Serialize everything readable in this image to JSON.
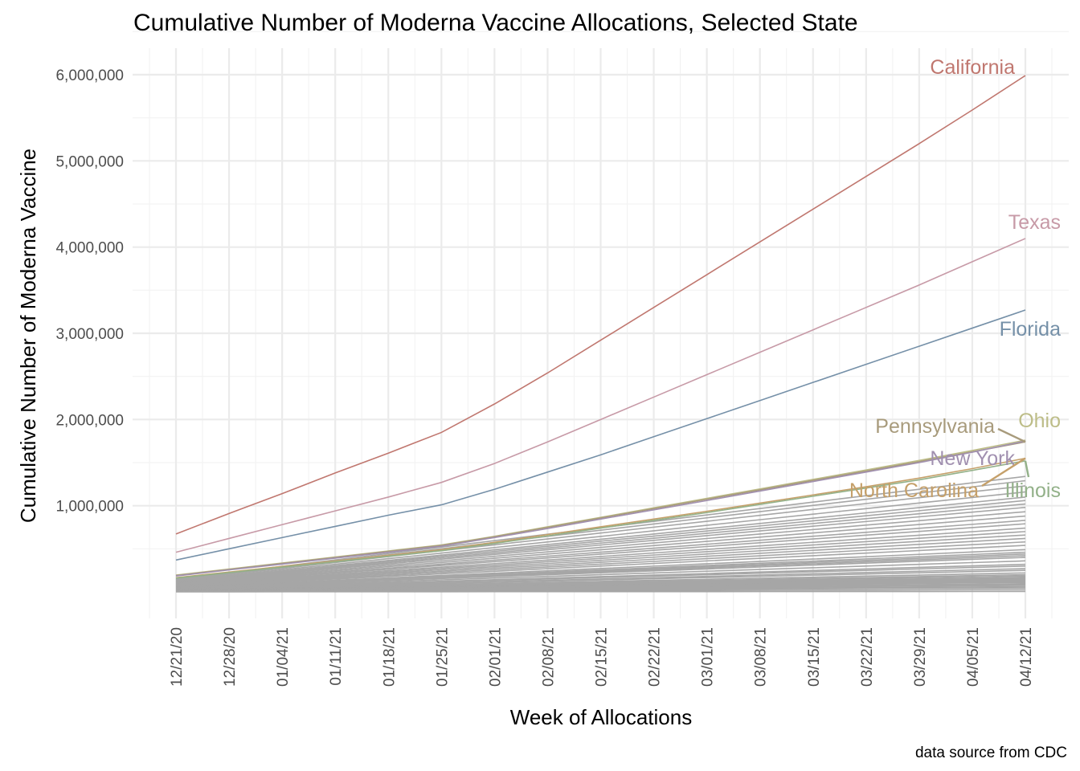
{
  "chart_data": {
    "type": "line",
    "title": "Cumulative Number of Moderna Vaccine Allocations, Selected State",
    "xlabel": "Week of Allocations",
    "ylabel": "Cumulative Number of Moderna Vaccine",
    "caption": "data source from CDC",
    "x": [
      "12/21/20",
      "12/28/20",
      "01/04/21",
      "01/11/21",
      "01/18/21",
      "01/25/21",
      "02/01/21",
      "02/08/21",
      "02/15/21",
      "02/22/21",
      "03/01/21",
      "03/08/21",
      "03/15/21",
      "03/22/21",
      "03/29/21",
      "04/05/21",
      "04/12/21"
    ],
    "ylim": [
      0,
      6200000
    ],
    "yticks": [
      1000000,
      2000000,
      3000000,
      4000000,
      5000000,
      6000000
    ],
    "ytick_labels": [
      "1,000,000",
      "2,000,000",
      "3,000,000",
      "4,000,000",
      "5,000,000",
      "6,000,000"
    ],
    "grid": true,
    "legend": "none (direct labels)",
    "series": [
      {
        "name": "California",
        "color": "#c0776f",
        "values": [
          672000,
          910000,
          1140000,
          1380000,
          1610000,
          1850000,
          2180000,
          2540000,
          2920000,
          3300000,
          3680000,
          4060000,
          4440000,
          4820000,
          5200000,
          5590000,
          5990000
        ]
      },
      {
        "name": "Texas",
        "color": "#c79aa7",
        "values": [
          460000,
          620000,
          780000,
          940000,
          1100000,
          1270000,
          1490000,
          1740000,
          2000000,
          2260000,
          2520000,
          2780000,
          3040000,
          3300000,
          3560000,
          3830000,
          4100000
        ]
      },
      {
        "name": "Florida",
        "color": "#7590a8",
        "values": [
          370000,
          500000,
          630000,
          760000,
          890000,
          1010000,
          1190000,
          1390000,
          1590000,
          1800000,
          2010000,
          2220000,
          2430000,
          2640000,
          2850000,
          3060000,
          3270000
        ]
      },
      {
        "name": "Ohio",
        "color": "#bdbd88",
        "values": [
          195000,
          265000,
          335000,
          405000,
          475000,
          545000,
          645000,
          755000,
          865000,
          975000,
          1085000,
          1195000,
          1305000,
          1415000,
          1525000,
          1640000,
          1760000
        ]
      },
      {
        "name": "Pennsylvania",
        "color": "#a89b7c",
        "values": [
          190000,
          260000,
          330000,
          400000,
          470000,
          540000,
          640000,
          748000,
          858000,
          966000,
          1075000,
          1184000,
          1293000,
          1402000,
          1511000,
          1625000,
          1740000
        ]
      },
      {
        "name": "New York",
        "color": "#a190b0",
        "values": [
          185000,
          255000,
          322000,
          392000,
          460000,
          530000,
          630000,
          735000,
          845000,
          952000,
          1060000,
          1170000,
          1280000,
          1390000,
          1500000,
          1620000,
          1750000
        ]
      },
      {
        "name": "North Carolina",
        "color": "#c5a06a",
        "values": [
          165000,
          230000,
          295000,
          360000,
          425000,
          490000,
          575000,
          665000,
          755000,
          845000,
          935000,
          1030000,
          1125000,
          1220000,
          1320000,
          1430000,
          1550000
        ]
      },
      {
        "name": "Illinois",
        "color": "#93b189",
        "values": [
          160000,
          223000,
          287000,
          350000,
          414000,
          478000,
          562000,
          650000,
          740000,
          830000,
          920000,
          1015000,
          1110000,
          1205000,
          1300000,
          1410000,
          1520000
        ]
      }
    ],
    "other_states_final": [
      1340000,
      1290000,
      1230000,
      1160000,
      1100000,
      1060000,
      1020000,
      980000,
      930000,
      880000,
      830000,
      790000,
      740000,
      700000,
      660000,
      620000,
      580000,
      540000,
      490000,
      460000,
      440000,
      420000,
      400000,
      360000,
      320000,
      300000,
      270000,
      250000,
      220000,
      200000,
      185000,
      170000,
      160000,
      150000,
      140000,
      130000,
      120000,
      110000,
      95000,
      85000,
      75000,
      60000,
      45000,
      25000,
      5000
    ],
    "other_states_color": "#a6a6a6"
  }
}
